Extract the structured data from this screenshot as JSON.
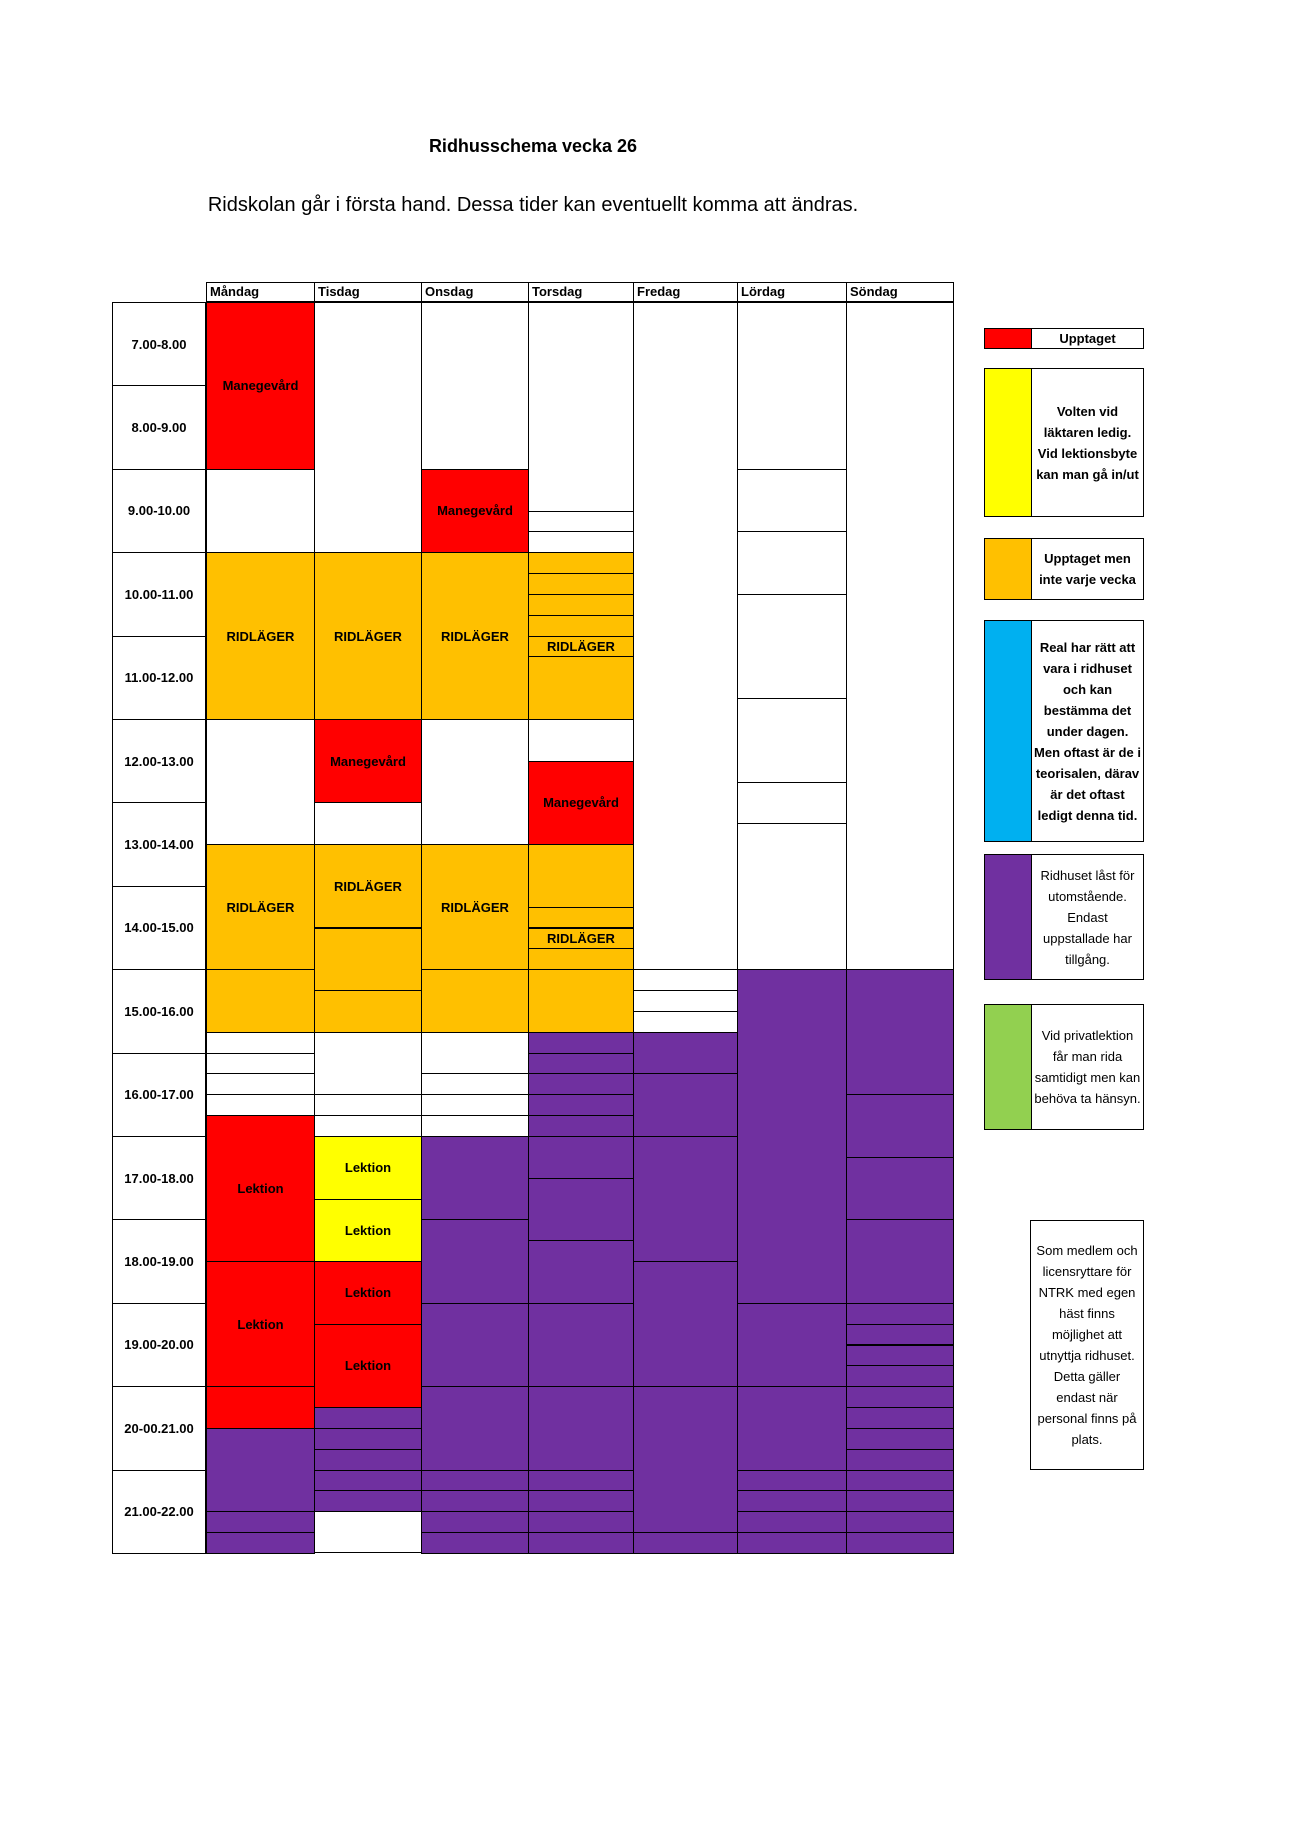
{
  "title": "Ridhusschema vecka 26",
  "subtitle": "Ridskolan går i första hand. Dessa tider kan eventuellt komma att ändras.",
  "days": [
    "Måndag",
    "Tisdag",
    "Onsdag",
    "Torsdag",
    "Fredag",
    "Lördag",
    "Söndag"
  ],
  "times": [
    "7.00-8.00",
    "8.00-9.00",
    "9.00-10.00",
    "10.00-11.00",
    "11.00-12.00",
    "12.00-13.00",
    "13.00-14.00",
    "14.00-15.00",
    "15.00-16.00",
    "16.00-17.00",
    "17.00-18.00",
    "18.00-19.00",
    "19.00-20.00",
    "20-00.21.00",
    "21.00-22.00"
  ],
  "colors": {
    "red": "#ff0000",
    "yellow": "#ffff00",
    "orange": "#ffc000",
    "blue": "#00b0f0",
    "purple": "#7030a0",
    "green": "#92d050",
    "white": "#ffffff"
  },
  "blocks": [
    {
      "day": 0,
      "start": 7,
      "end": 9,
      "color": "red",
      "label": "Manegevård"
    },
    {
      "day": 0,
      "start": 10,
      "end": 12,
      "color": "orange",
      "label": "RIDLÄGER"
    },
    {
      "day": 0,
      "start": 13.5,
      "end": 15,
      "color": "orange",
      "label": "RIDLÄGER"
    },
    {
      "day": 0,
      "start": 15,
      "end": 15.75,
      "color": "orange",
      "label": ""
    },
    {
      "day": 0,
      "start": 16.75,
      "end": 18.5,
      "color": "red",
      "label": "Lektion"
    },
    {
      "day": 0,
      "start": 18.5,
      "end": 20,
      "color": "red",
      "label": "Lektion"
    },
    {
      "day": 0,
      "start": 20,
      "end": 21.5,
      "color": "red",
      "label": "Lektion"
    },
    {
      "day": 0,
      "start": 20.5,
      "end": 21.5,
      "color": "purple",
      "label": ""
    },
    {
      "day": 0,
      "start": 21.5,
      "end": 21.75,
      "color": "purple",
      "label": ""
    },
    {
      "day": 0,
      "start": 21.75,
      "end": 22,
      "color": "purple",
      "label": ""
    },
    {
      "day": 1,
      "start": 10,
      "end": 12,
      "color": "orange",
      "label": "RIDLÄGER"
    },
    {
      "day": 1,
      "start": 12,
      "end": 13,
      "color": "red",
      "label": "Manegevård"
    },
    {
      "day": 1,
      "start": 13.5,
      "end": 14.5,
      "color": "orange",
      "label": "RIDLÄGER"
    },
    {
      "day": 1,
      "start": 14.5,
      "end": 15.25,
      "color": "orange",
      "label": ""
    },
    {
      "day": 1,
      "start": 15.25,
      "end": 15.75,
      "color": "orange",
      "label": ""
    },
    {
      "day": 1,
      "start": 17,
      "end": 17.75,
      "color": "yellow",
      "label": "Lektion"
    },
    {
      "day": 1,
      "start": 17.75,
      "end": 18.5,
      "color": "yellow",
      "label": "Lektion"
    },
    {
      "day": 1,
      "start": 18.5,
      "end": 19.25,
      "color": "red",
      "label": "Lektion"
    },
    {
      "day": 1,
      "start": 19.25,
      "end": 20.25,
      "color": "red",
      "label": "Lektion"
    },
    {
      "day": 1,
      "start": 20.25,
      "end": 20.5,
      "color": "purple",
      "label": ""
    },
    {
      "day": 1,
      "start": 20.5,
      "end": 20.75,
      "color": "purple",
      "label": ""
    },
    {
      "day": 1,
      "start": 20.75,
      "end": 21,
      "color": "purple",
      "label": ""
    },
    {
      "day": 1,
      "start": 21,
      "end": 21.25,
      "color": "purple",
      "label": ""
    },
    {
      "day": 1,
      "start": 21.25,
      "end": 21.5,
      "color": "purple",
      "label": ""
    },
    {
      "day": 2,
      "start": 9,
      "end": 10,
      "color": "red",
      "label": "Manegevård"
    },
    {
      "day": 2,
      "start": 10,
      "end": 12,
      "color": "orange",
      "label": "RIDLÄGER"
    },
    {
      "day": 2,
      "start": 13.5,
      "end": 15,
      "color": "orange",
      "label": "RIDLÄGER"
    },
    {
      "day": 2,
      "start": 15,
      "end": 15.75,
      "color": "orange",
      "label": ""
    },
    {
      "day": 2,
      "start": 17,
      "end": 18,
      "color": "purple",
      "label": ""
    },
    {
      "day": 2,
      "start": 18,
      "end": 19,
      "color": "purple",
      "label": ""
    },
    {
      "day": 2,
      "start": 19,
      "end": 20,
      "color": "purple",
      "label": ""
    },
    {
      "day": 2,
      "start": 20,
      "end": 21,
      "color": "purple",
      "label": ""
    },
    {
      "day": 2,
      "start": 21,
      "end": 21.25,
      "color": "purple",
      "label": ""
    },
    {
      "day": 2,
      "start": 21.25,
      "end": 21.5,
      "color": "purple",
      "label": ""
    },
    {
      "day": 2,
      "start": 21.5,
      "end": 21.75,
      "color": "purple",
      "label": ""
    },
    {
      "day": 2,
      "start": 21.75,
      "end": 22,
      "color": "purple",
      "label": ""
    },
    {
      "day": 3,
      "start": 10,
      "end": 10.25,
      "color": "orange",
      "label": ""
    },
    {
      "day": 3,
      "start": 10.25,
      "end": 10.5,
      "color": "orange",
      "label": ""
    },
    {
      "day": 3,
      "start": 10.5,
      "end": 10.75,
      "color": "orange",
      "label": ""
    },
    {
      "day": 3,
      "start": 10.75,
      "end": 11,
      "color": "orange",
      "label": ""
    },
    {
      "day": 3,
      "start": 11,
      "end": 11.25,
      "color": "orange",
      "label": "RIDLÄGER"
    },
    {
      "day": 3,
      "start": 11.25,
      "end": 12,
      "color": "orange",
      "label": ""
    },
    {
      "day": 3,
      "start": 12.5,
      "end": 13.5,
      "color": "red",
      "label": "Manegevård"
    },
    {
      "day": 3,
      "start": 13.5,
      "end": 14.25,
      "color": "orange",
      "label": ""
    },
    {
      "day": 3,
      "start": 14.25,
      "end": 14.5,
      "color": "orange",
      "label": ""
    },
    {
      "day": 3,
      "start": 14.5,
      "end": 14.75,
      "color": "orange",
      "label": "RIDLÄGER"
    },
    {
      "day": 3,
      "start": 14.75,
      "end": 15,
      "color": "orange",
      "label": ""
    },
    {
      "day": 3,
      "start": 15,
      "end": 15.75,
      "color": "orange",
      "label": ""
    },
    {
      "day": 3,
      "start": 15.75,
      "end": 16,
      "color": "purple",
      "label": ""
    },
    {
      "day": 3,
      "start": 16,
      "end": 16.25,
      "color": "purple",
      "label": ""
    },
    {
      "day": 3,
      "start": 16.25,
      "end": 16.5,
      "color": "purple",
      "label": ""
    },
    {
      "day": 3,
      "start": 16.5,
      "end": 16.75,
      "color": "purple",
      "label": ""
    },
    {
      "day": 3,
      "start": 16.75,
      "end": 17,
      "color": "purple",
      "label": ""
    },
    {
      "day": 3,
      "start": 17,
      "end": 17.5,
      "color": "purple",
      "label": ""
    },
    {
      "day": 3,
      "start": 17.5,
      "end": 18.25,
      "color": "purple",
      "label": ""
    },
    {
      "day": 3,
      "start": 18.25,
      "end": 19,
      "color": "purple",
      "label": ""
    },
    {
      "day": 3,
      "start": 19,
      "end": 20,
      "color": "purple",
      "label": ""
    },
    {
      "day": 3,
      "start": 20,
      "end": 21,
      "color": "purple",
      "label": ""
    },
    {
      "day": 3,
      "start": 21,
      "end": 21.25,
      "color": "purple",
      "label": ""
    },
    {
      "day": 3,
      "start": 21.25,
      "end": 21.5,
      "color": "purple",
      "label": ""
    },
    {
      "day": 3,
      "start": 21.5,
      "end": 21.75,
      "color": "purple",
      "label": ""
    },
    {
      "day": 3,
      "start": 21.75,
      "end": 22,
      "color": "purple",
      "label": ""
    },
    {
      "day": 4,
      "start": 15.75,
      "end": 16.25,
      "color": "purple",
      "label": ""
    },
    {
      "day": 4,
      "start": 16.25,
      "end": 17,
      "color": "purple",
      "label": ""
    },
    {
      "day": 4,
      "start": 17,
      "end": 18.5,
      "color": "purple",
      "label": ""
    },
    {
      "day": 4,
      "start": 18.5,
      "end": 20,
      "color": "purple",
      "label": ""
    },
    {
      "day": 4,
      "start": 20,
      "end": 21.75,
      "color": "purple",
      "label": ""
    },
    {
      "day": 4,
      "start": 21.75,
      "end": 22,
      "color": "purple",
      "label": ""
    },
    {
      "day": 5,
      "start": 15,
      "end": 19,
      "color": "purple",
      "label": ""
    },
    {
      "day": 5,
      "start": 19,
      "end": 20,
      "color": "purple",
      "label": ""
    },
    {
      "day": 5,
      "start": 20,
      "end": 21,
      "color": "purple",
      "label": ""
    },
    {
      "day": 5,
      "start": 21,
      "end": 21.25,
      "color": "purple",
      "label": ""
    },
    {
      "day": 5,
      "start": 21.25,
      "end": 21.5,
      "color": "purple",
      "label": ""
    },
    {
      "day": 5,
      "start": 21.5,
      "end": 21.75,
      "color": "purple",
      "label": ""
    },
    {
      "day": 5,
      "start": 21.75,
      "end": 22,
      "color": "purple",
      "label": ""
    },
    {
      "day": 6,
      "start": 15,
      "end": 16.5,
      "color": "purple",
      "label": ""
    },
    {
      "day": 6,
      "start": 16.5,
      "end": 17.25,
      "color": "purple",
      "label": ""
    },
    {
      "day": 6,
      "start": 17.25,
      "end": 18,
      "color": "purple",
      "label": ""
    },
    {
      "day": 6,
      "start": 18,
      "end": 19,
      "color": "purple",
      "label": ""
    },
    {
      "day": 6,
      "start": 19,
      "end": 19.25,
      "color": "purple",
      "label": ""
    },
    {
      "day": 6,
      "start": 19.25,
      "end": 19.5,
      "color": "purple",
      "label": ""
    },
    {
      "day": 6,
      "start": 19.5,
      "end": 19.75,
      "color": "purple",
      "label": ""
    },
    {
      "day": 6,
      "start": 19.75,
      "end": 20,
      "color": "purple",
      "label": ""
    },
    {
      "day": 6,
      "start": 20,
      "end": 20.25,
      "color": "purple",
      "label": ""
    },
    {
      "day": 6,
      "start": 20.25,
      "end": 20.5,
      "color": "purple",
      "label": ""
    },
    {
      "day": 6,
      "start": 20.5,
      "end": 20.75,
      "color": "purple",
      "label": ""
    },
    {
      "day": 6,
      "start": 20.75,
      "end": 21,
      "color": "purple",
      "label": ""
    },
    {
      "day": 6,
      "start": 21,
      "end": 21.25,
      "color": "purple",
      "label": ""
    },
    {
      "day": 6,
      "start": 21.25,
      "end": 21.5,
      "color": "purple",
      "label": ""
    },
    {
      "day": 6,
      "start": 21.5,
      "end": 21.75,
      "color": "purple",
      "label": ""
    },
    {
      "day": 6,
      "start": 21.75,
      "end": 22,
      "color": "purple",
      "label": ""
    },
    {
      "day": 0,
      "start": 15.75,
      "end": 16,
      "color": "white",
      "label": ""
    },
    {
      "day": 0,
      "start": 16,
      "end": 16.25,
      "color": "white",
      "label": ""
    },
    {
      "day": 0,
      "start": 16.25,
      "end": 16.5,
      "color": "white",
      "label": ""
    },
    {
      "day": 0,
      "start": 16.5,
      "end": 16.75,
      "color": "white",
      "label": ""
    },
    {
      "day": 1,
      "start": 16.5,
      "end": 16.75,
      "color": "white",
      "label": ""
    },
    {
      "day": 1,
      "start": 16.75,
      "end": 17,
      "color": "white",
      "label": ""
    },
    {
      "day": 2,
      "start": 16.25,
      "end": 16.5,
      "color": "white",
      "label": ""
    },
    {
      "day": 2,
      "start": 16.5,
      "end": 16.75,
      "color": "white",
      "label": ""
    },
    {
      "day": 2,
      "start": 16.75,
      "end": 17,
      "color": "white",
      "label": ""
    },
    {
      "day": 3,
      "start": 9.5,
      "end": 9.75,
      "color": "white",
      "label": ""
    },
    {
      "day": 3,
      "start": 9.75,
      "end": 10,
      "color": "white",
      "label": ""
    },
    {
      "day": 3,
      "start": 12,
      "end": 12.5,
      "color": "white",
      "label": ""
    },
    {
      "day": 4,
      "start": 15,
      "end": 15.25,
      "color": "white",
      "label": ""
    },
    {
      "day": 4,
      "start": 15.25,
      "end": 15.5,
      "color": "white",
      "label": ""
    },
    {
      "day": 5,
      "start": 9,
      "end": 9.75,
      "color": "white",
      "label": ""
    },
    {
      "day": 5,
      "start": 9.75,
      "end": 10.5,
      "color": "white",
      "label": ""
    },
    {
      "day": 5,
      "start": 10.5,
      "end": 11.75,
      "color": "white",
      "label": ""
    },
    {
      "day": 5,
      "start": 11.75,
      "end": 12.75,
      "color": "white",
      "label": ""
    },
    {
      "day": 5,
      "start": 12.75,
      "end": 13.25,
      "color": "white",
      "label": ""
    }
  ],
  "legend": [
    {
      "color": "red",
      "text": "Upptaget",
      "bold": true
    },
    {
      "color": "yellow",
      "text": "Volten vid läktaren ledig. Vid lektionsbyte kan man gå in/ut",
      "bold": true
    },
    {
      "color": "orange",
      "text": "Upptaget men inte varje vecka",
      "bold": true
    },
    {
      "color": "blue",
      "text": "Real har rätt att vara i ridhuset och kan bestämma det under dagen. Men oftast är de i teorisalen, därav är det oftast ledigt denna tid.",
      "bold": true
    },
    {
      "color": "purple",
      "text": "Ridhuset låst för utomstående. Endast uppstallade har tillgång.",
      "bold": false
    },
    {
      "color": "green",
      "text": "Vid privatlektion får man rida samtidigt men kan behöva ta hänsyn.",
      "bold": false
    }
  ],
  "note": "Som medlem och licensryttare för NTRK med egen häst finns möjlighet att utnyttja ridhuset. Detta gäller endast när personal finns på plats."
}
